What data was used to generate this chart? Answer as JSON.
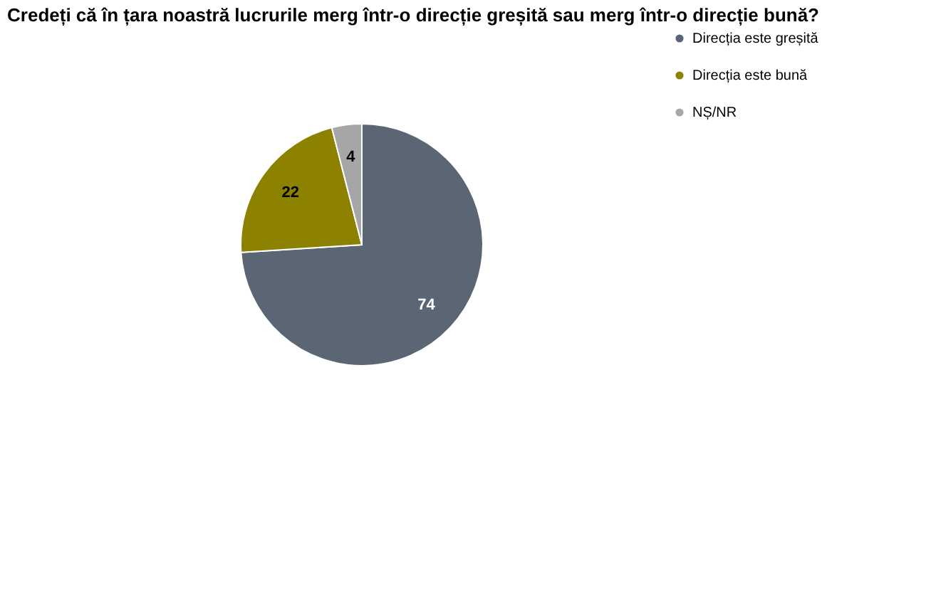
{
  "chart_data": {
    "type": "pie",
    "title": "Credeți că în țara noastră lucrurile merg într-o direcție greșită sau merg într-o direcție bună?",
    "categories": [
      "Direcția este greșită",
      "Direcția este bună",
      "NȘ/NR"
    ],
    "values": [
      74,
      22,
      4
    ],
    "colors": [
      "#5a6674",
      "#8c8200",
      "#a6a6a6"
    ],
    "data_labels": true,
    "legend": "right"
  }
}
